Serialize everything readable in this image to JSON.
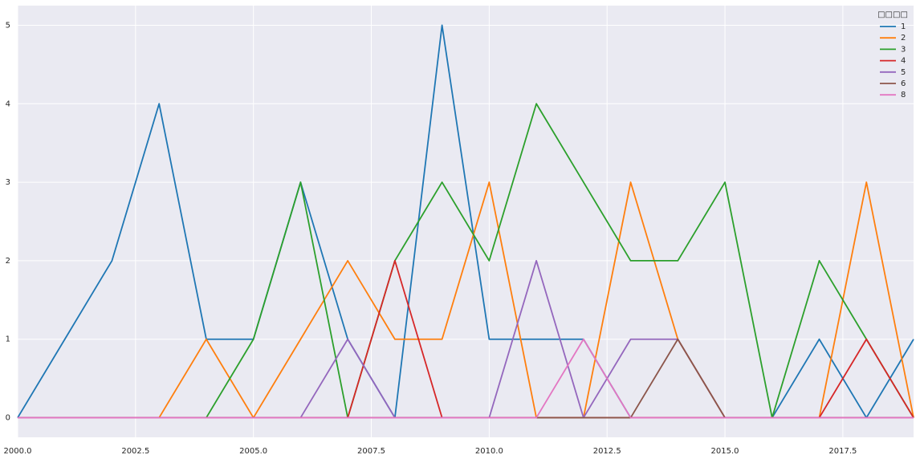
{
  "chart_data": {
    "type": "line",
    "x": [
      2000,
      2001,
      2002,
      2003,
      2004,
      2005,
      2006,
      2007,
      2008,
      2009,
      2010,
      2011,
      2012,
      2013,
      2014,
      2015,
      2016,
      2017,
      2018,
      2019
    ],
    "series": [
      {
        "name": "1",
        "color": "#1f77b4",
        "values": [
          0,
          1,
          2,
          4,
          1,
          1,
          3,
          1,
          0,
          5,
          1,
          1,
          1,
          0,
          0,
          0,
          0,
          1,
          0,
          1
        ]
      },
      {
        "name": "2",
        "color": "#ff7f0e",
        "values": [
          0,
          0,
          0,
          0,
          1,
          0,
          1,
          2,
          1,
          1,
          3,
          0,
          0,
          3,
          1,
          0,
          0,
          0,
          3,
          0
        ]
      },
      {
        "name": "3",
        "color": "#2ca02c",
        "values": [
          0,
          0,
          0,
          0,
          0,
          1,
          3,
          0,
          2,
          3,
          2,
          4,
          3,
          2,
          2,
          3,
          0,
          2,
          1,
          0
        ]
      },
      {
        "name": "4",
        "color": "#d62728",
        "values": [
          0,
          0,
          0,
          0,
          0,
          0,
          0,
          0,
          2,
          0,
          0,
          0,
          0,
          0,
          0,
          0,
          0,
          0,
          1,
          0
        ]
      },
      {
        "name": "5",
        "color": "#9467bd",
        "values": [
          0,
          0,
          0,
          0,
          0,
          0,
          0,
          1,
          0,
          0,
          0,
          2,
          0,
          1,
          1,
          0,
          0,
          0,
          0,
          0
        ]
      },
      {
        "name": "6",
        "color": "#8c564b",
        "values": [
          0,
          0,
          0,
          0,
          0,
          0,
          0,
          0,
          0,
          0,
          0,
          0,
          0,
          0,
          1,
          0,
          0,
          0,
          0,
          0
        ]
      },
      {
        "name": "8",
        "color": "#e377c2",
        "values": [
          0,
          0,
          0,
          0,
          0,
          0,
          0,
          0,
          0,
          0,
          0,
          0,
          1,
          0,
          0,
          0,
          0,
          0,
          0,
          0
        ]
      }
    ],
    "legend_title": "□□□□",
    "legend": "upper right",
    "grid": true,
    "xlim": [
      2000,
      2019
    ],
    "xticks": [
      {
        "value": 2000,
        "label": "2000.0"
      },
      {
        "value": 2002.5,
        "label": "2002.5"
      },
      {
        "value": 2005,
        "label": "2005.0"
      },
      {
        "value": 2007.5,
        "label": "2007.5"
      },
      {
        "value": 2010,
        "label": "2010.0"
      },
      {
        "value": 2012.5,
        "label": "2012.5"
      },
      {
        "value": 2015,
        "label": "2015.0"
      },
      {
        "value": 2017.5,
        "label": "2017.5"
      }
    ],
    "ylim": [
      -0.25,
      5.25
    ],
    "yticks": [
      0,
      1,
      2,
      3,
      4,
      5
    ]
  }
}
